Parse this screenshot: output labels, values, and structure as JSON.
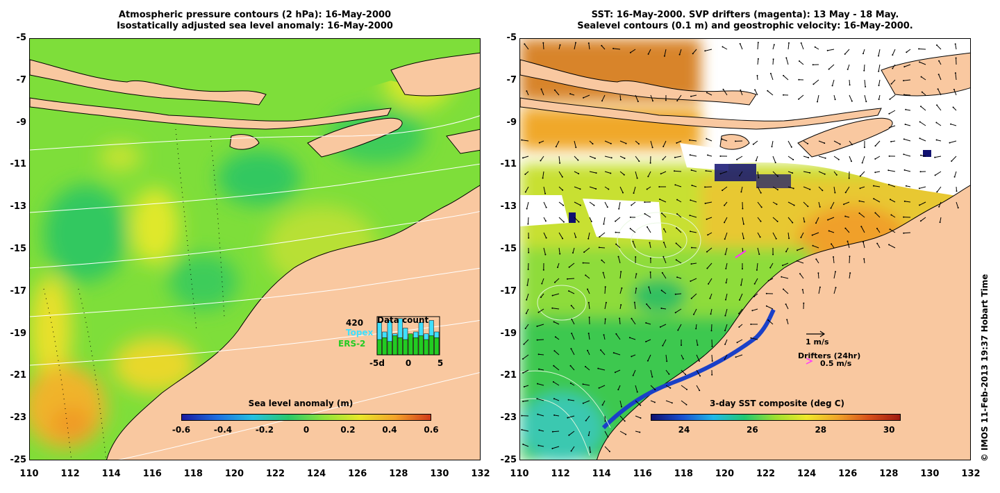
{
  "left_panel": {
    "title_line1": "Atmospheric pressure contours (2 hPa): 16-May-2000",
    "title_line2": "Isostatically adjusted sea level anomaly: 16-May-2000",
    "colorbar": {
      "title": "Sea level anomaly (m)",
      "ticks": [
        "-0.6",
        "-0.4",
        "-0.2",
        "0",
        "0.2",
        "0.4",
        "0.6"
      ],
      "colors": [
        "#1a1aa0",
        "#1e6fe0",
        "#25c0e0",
        "#2ac86a",
        "#8ee43a",
        "#e8e82a",
        "#f4a42a",
        "#d23a1a"
      ]
    },
    "data_count": {
      "title": "Data count",
      "max_label": "420",
      "topex_label": "Topex",
      "ers_label": "ERS-2",
      "x_ticks": [
        "-5d",
        "0",
        "5"
      ],
      "topex_color": "#3fe0ff",
      "ers_color": "#22cc22",
      "topex_fractions": [
        0.85,
        0.6,
        0.9,
        0.55,
        0.95,
        0.7,
        0.45,
        0.6,
        0.85,
        0.55,
        0.9,
        0.6
      ],
      "ers_fractions": [
        0.4,
        0.45,
        0.35,
        0.5,
        0.45,
        0.4,
        0.55,
        0.45,
        0.5,
        0.4,
        0.5,
        0.45
      ]
    }
  },
  "right_panel": {
    "title_line1": "SST: 16-May-2000. SVP drifters (magenta): 13 May - 18 May.",
    "title_line2": "Sealevel contours (0.1 m) and geostrophic velocity: 16-May-2000.",
    "colorbar": {
      "title": "3-day SST composite (deg C)",
      "ticks": [
        "24",
        "26",
        "28",
        "30"
      ],
      "colors": [
        "#101070",
        "#1a50d0",
        "#20b8e8",
        "#22c870",
        "#9ee030",
        "#f0e82a",
        "#f0a42a",
        "#d8501a",
        "#a01a10"
      ]
    },
    "velocity_legend": "1 m/s",
    "drifter_legend_title": "Drifters (24hr)",
    "drifter_legend_value": "0.5 m/s",
    "drifter_color": "#ff33ff"
  },
  "axes": {
    "y_ticks": [
      "-5",
      "-7",
      "-9",
      "-11",
      "-13",
      "-15",
      "-17",
      "-19",
      "-21",
      "-23",
      "-25"
    ],
    "x_ticks": [
      "110",
      "112",
      "114",
      "116",
      "118",
      "120",
      "122",
      "124",
      "126",
      "128",
      "130",
      "132"
    ]
  },
  "colors": {
    "land": "#f9c8a0",
    "ocean_base": "#7ede3a",
    "sst_warm": "#e08a2c",
    "sst_cool": "#3cc850"
  },
  "credit": "© IMOS 11-Feb-2013 19:37 Hobart Time"
}
